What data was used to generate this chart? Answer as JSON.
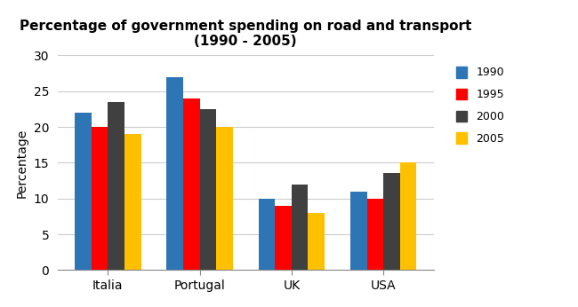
{
  "title_line1": "Percentage of government spending on road and transport",
  "title_line2": "(1990 - 2005)",
  "categories": [
    "Italia",
    "Portugal",
    "UK",
    "USA"
  ],
  "years": [
    "1990",
    "1995",
    "2000",
    "2005"
  ],
  "values": {
    "1990": [
      22,
      27,
      10,
      11
    ],
    "1995": [
      20,
      24,
      9,
      10
    ],
    "2000": [
      23.5,
      22.5,
      12,
      13.5
    ],
    "2005": [
      19,
      20,
      8,
      15
    ]
  },
  "bar_colors": {
    "1990": "#2E75B6",
    "1995": "#FF0000",
    "2000": "#404040",
    "2005": "#FFC000"
  },
  "ylabel": "Percentage",
  "ylim": [
    0,
    30
  ],
  "yticks": [
    0,
    5,
    10,
    15,
    20,
    25,
    30
  ],
  "background_color": "#ffffff",
  "bar_width": 0.18,
  "legend_fontsize": 9,
  "title_fontsize": 11,
  "axis_label_fontsize": 10
}
